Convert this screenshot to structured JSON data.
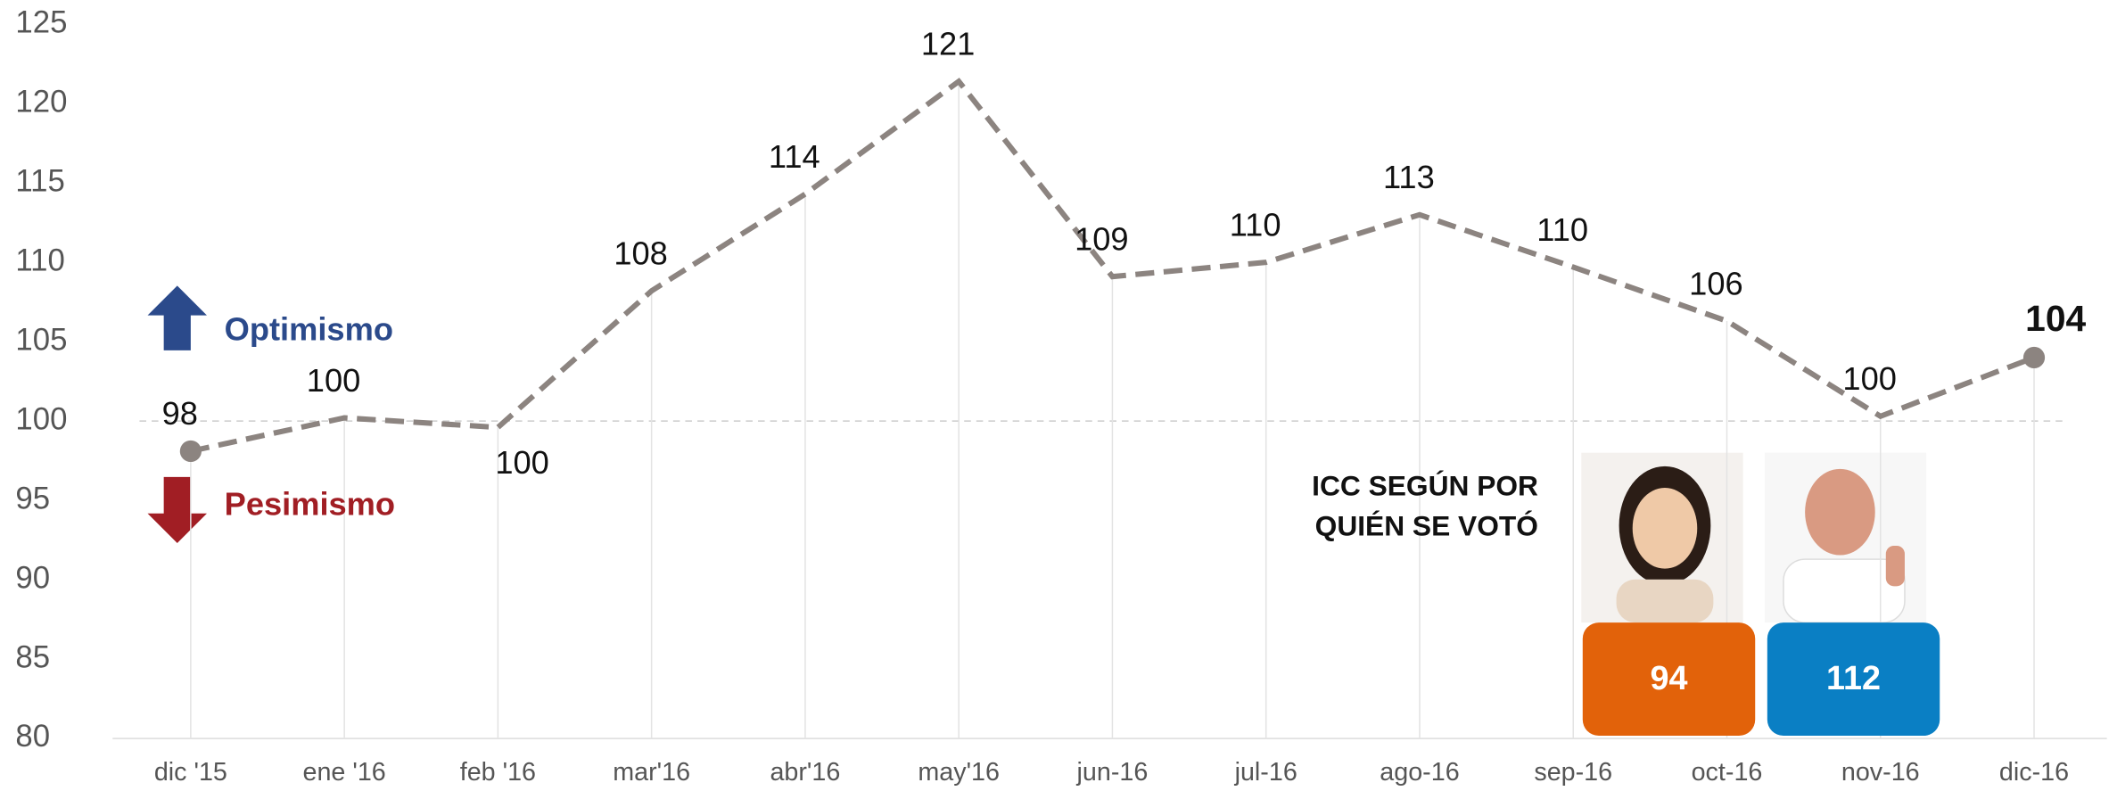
{
  "chart_data": {
    "type": "line",
    "categories": [
      "dic '15",
      "ene '16",
      "feb '16",
      "mar'16",
      "abr'16",
      "may'16",
      "jun-16",
      "jul-16",
      "ago-16",
      "sep-16",
      "oct-16",
      "nov-16",
      "dic-16"
    ],
    "series": [
      {
        "color": "#8c8480",
        "values": [
          98.1,
          100.2,
          99.6,
          108.2,
          114.3,
          121.4,
          109.1,
          110,
          113,
          109.7,
          106.3,
          100.3,
          104
        ],
        "value_labels": [
          "98",
          "100",
          "100",
          "108",
          "114",
          "121",
          "109",
          "110",
          "113",
          "110",
          "106",
          "100",
          "104"
        ]
      }
    ],
    "ylim": [
      80,
      125
    ],
    "yticks": [
      80,
      85,
      90,
      95,
      100,
      105,
      110,
      115,
      120,
      125
    ],
    "reference_line": 100,
    "annotations": [
      {
        "text": "Optimismo",
        "color": "#2b4a8b"
      },
      {
        "text": "Pesimismo",
        "color": "#a11e24"
      }
    ],
    "inset": {
      "title_lines": [
        "ICC SEGÚN POR",
        "QUIÉN SE VOTÓ"
      ],
      "boxes": [
        {
          "value": 94,
          "color": "#e2620a"
        },
        {
          "value": 112,
          "color": "#0a7fc4"
        }
      ]
    }
  }
}
